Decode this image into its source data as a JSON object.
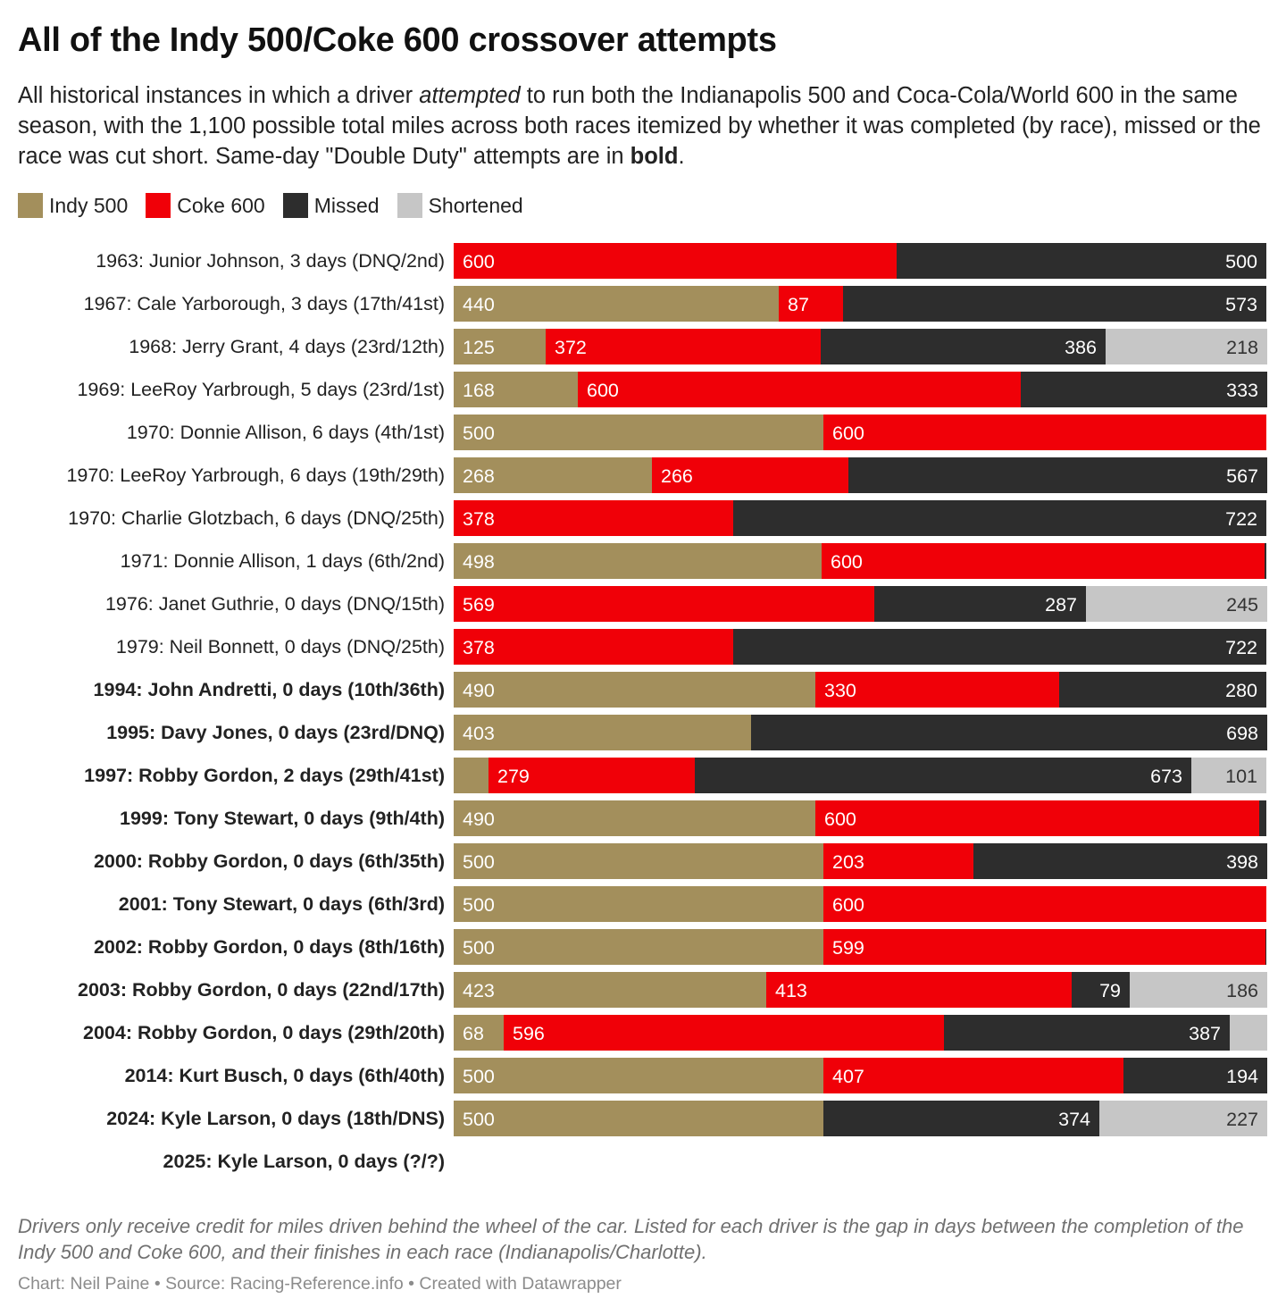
{
  "title": "All of the Indy 500/Coke 600 crossover attempts",
  "subtitle": {
    "part1": "All historical instances in which a driver ",
    "emph": "attempted",
    "part2": " to run both the Indianapolis 500 and Coca-Cola/World 600 in the same season, with the 1,100 possible total miles across both races itemized by whether it was completed (by race), missed or the race was cut short. Same-day \"Double Duty\" attempts are in ",
    "bold": "bold",
    "part3": "."
  },
  "colors": {
    "indy": "#a38f5c",
    "coke": "#f00008",
    "missed": "#2d2d2d",
    "shortened": "#c6c6c6"
  },
  "chart_data": {
    "type": "bar",
    "orientation": "horizontal",
    "stacked": true,
    "xlim": [
      0,
      1100
    ],
    "legend": [
      {
        "key": "indy",
        "label": "Indy 500"
      },
      {
        "key": "coke",
        "label": "Coke 600"
      },
      {
        "key": "missed",
        "label": "Missed"
      },
      {
        "key": "shortened",
        "label": "Shortened"
      }
    ],
    "series_order": [
      "indy",
      "coke",
      "missed",
      "shortened"
    ],
    "rows": [
      {
        "label": "1963: Junior Johnson, 3 days (DNQ/2nd)",
        "bold": false,
        "indy": 0,
        "coke": 600,
        "missed": 500,
        "shortened": 0
      },
      {
        "label": "1967: Cale Yarborough, 3 days (17th/41st)",
        "bold": false,
        "indy": 440,
        "coke": 87,
        "missed": 573,
        "shortened": 0
      },
      {
        "label": "1968: Jerry Grant, 4 days (23rd/12th)",
        "bold": false,
        "indy": 125,
        "coke": 372,
        "missed": 386,
        "shortened": 218
      },
      {
        "label": "1969: LeeRoy Yarbrough, 5 days (23rd/1st)",
        "bold": false,
        "indy": 168,
        "coke": 600,
        "missed": 333,
        "shortened": 0
      },
      {
        "label": "1970: Donnie Allison, 6 days (4th/1st)",
        "bold": false,
        "indy": 500,
        "coke": 600,
        "missed": 0,
        "shortened": 0
      },
      {
        "label": "1970: LeeRoy Yarbrough, 6 days (19th/29th)",
        "bold": false,
        "indy": 268,
        "coke": 266,
        "missed": 567,
        "shortened": 0
      },
      {
        "label": "1970: Charlie Glotzbach, 6 days (DNQ/25th)",
        "bold": false,
        "indy": 0,
        "coke": 378,
        "missed": 722,
        "shortened": 0
      },
      {
        "label": "1971: Donnie Allison, 1 days (6th/2nd)",
        "bold": false,
        "indy": 498,
        "coke": 600,
        "missed": 2,
        "shortened": 0,
        "hide": [
          "missed"
        ]
      },
      {
        "label": "1976: Janet Guthrie, 0 days (DNQ/15th)",
        "bold": false,
        "indy": 0,
        "coke": 569,
        "missed": 287,
        "shortened": 245
      },
      {
        "label": "1979: Neil Bonnett, 0 days (DNQ/25th)",
        "bold": false,
        "indy": 0,
        "coke": 378,
        "missed": 722,
        "shortened": 0
      },
      {
        "label": "1994: John Andretti, 0 days (10th/36th)",
        "bold": true,
        "indy": 490,
        "coke": 330,
        "missed": 280,
        "shortened": 0
      },
      {
        "label": "1995: Davy Jones, 0 days (23rd/DNQ)",
        "bold": true,
        "indy": 403,
        "coke": 0,
        "missed": 698,
        "shortened": 0
      },
      {
        "label": "1997: Robby Gordon, 2 days (29th/41st)",
        "bold": true,
        "indy": 47,
        "coke": 279,
        "missed": 673,
        "shortened": 101,
        "hide": [
          "indy"
        ]
      },
      {
        "label": "1999: Tony Stewart, 0 days (9th/4th)",
        "bold": true,
        "indy": 490,
        "coke": 600,
        "missed": 10,
        "shortened": 0,
        "hide": [
          "missed"
        ]
      },
      {
        "label": "2000: Robby Gordon, 0 days (6th/35th)",
        "bold": true,
        "indy": 500,
        "coke": 203,
        "missed": 398,
        "shortened": 0
      },
      {
        "label": "2001: Tony Stewart, 0 days (6th/3rd)",
        "bold": true,
        "indy": 500,
        "coke": 600,
        "missed": 0,
        "shortened": 0
      },
      {
        "label": "2002: Robby Gordon, 0 days (8th/16th)",
        "bold": true,
        "indy": 500,
        "coke": 599,
        "missed": 1,
        "shortened": 0,
        "hide": [
          "missed"
        ]
      },
      {
        "label": "2003: Robby Gordon, 0 days (22nd/17th)",
        "bold": true,
        "indy": 423,
        "coke": 413,
        "missed": 79,
        "shortened": 186
      },
      {
        "label": "2004: Robby Gordon, 0 days (29th/20th)",
        "bold": true,
        "indy": 68,
        "coke": 596,
        "missed": 387,
        "shortened": 50,
        "hide": [
          "shortened"
        ]
      },
      {
        "label": "2014: Kurt Busch, 0 days (6th/40th)",
        "bold": true,
        "indy": 500,
        "coke": 407,
        "missed": 194,
        "shortened": 0
      },
      {
        "label": "2024: Kyle Larson, 0 days (18th/DNS)",
        "bold": true,
        "indy": 500,
        "coke": 0,
        "missed": 374,
        "shortened": 227
      },
      {
        "label": "2025: Kyle Larson, 0 days (?/?)",
        "bold": true,
        "indy": 0,
        "coke": 0,
        "missed": 0,
        "shortened": 0
      }
    ]
  },
  "notes": "Drivers only receive credit for miles driven behind the wheel of the car. Listed for each driver is the gap in days between the completion of the Indy 500 and Coke 600, and their finishes in each race (Indianapolis/Charlotte).",
  "credit": "Chart: Neil Paine • Source: Racing-Reference.info • Created with Datawrapper"
}
